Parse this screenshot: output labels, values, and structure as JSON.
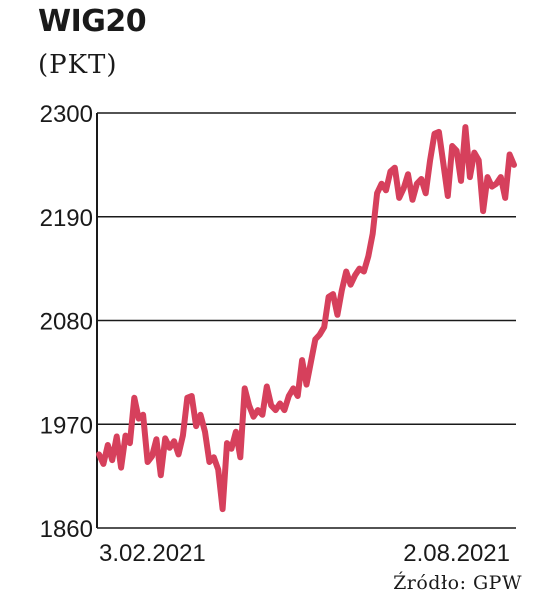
{
  "chart_data": {
    "type": "line",
    "title": "WIG20",
    "subtitle": "(PKT)",
    "source": "Źródło: GPW",
    "ylim": [
      1860,
      2300
    ],
    "yticks": [
      "2300",
      "2190",
      "2080",
      "1970",
      "1860"
    ],
    "xtick_labels": [
      "3.02.2021",
      "2.08.2021"
    ],
    "grid": "horizontal",
    "line_color": "#d6405c",
    "series": [
      {
        "values": [
          1938,
          1928,
          1948,
          1932,
          1957,
          1924,
          1958,
          1950,
          1998,
          1976,
          1980,
          1930,
          1936,
          1954,
          1916,
          1955,
          1945,
          1952,
          1938,
          1958,
          1998,
          2000,
          1968,
          1980,
          1962,
          1930,
          1935,
          1922,
          1880,
          1950,
          1944,
          1962,
          1935,
          2008,
          1990,
          1978,
          1985,
          1980,
          2010,
          1990,
          1985,
          1992,
          1985,
          2000,
          2008,
          2000,
          2038,
          2012,
          2036,
          2060,
          2065,
          2073,
          2105,
          2108,
          2086,
          2112,
          2132,
          2118,
          2128,
          2135,
          2132,
          2148,
          2172,
          2215,
          2225,
          2218,
          2238,
          2242,
          2210,
          2220,
          2235,
          2208,
          2225,
          2230,
          2215,
          2250,
          2278,
          2280,
          2246,
          2212,
          2265,
          2260,
          2228,
          2285,
          2232,
          2258,
          2250,
          2196,
          2232,
          2222,
          2225,
          2232,
          2210,
          2256,
          2245
        ]
      }
    ]
  }
}
